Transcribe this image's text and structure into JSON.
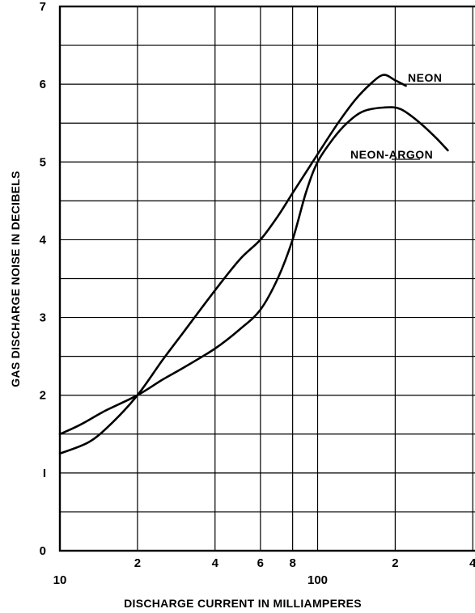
{
  "chart_data": {
    "type": "line",
    "xlabel": "DISCHARGE CURRENT IN MILLIAMPERES",
    "ylabel": "GAS DISCHARGE NOISE IN DECIBELS",
    "x_scale": "log",
    "xlim": [
      10,
      400
    ],
    "ylim": [
      0,
      7
    ],
    "grid": true,
    "x_ticks": [
      {
        "value": 10,
        "label": "10"
      },
      {
        "value": 20,
        "label": "2"
      },
      {
        "value": 40,
        "label": "4"
      },
      {
        "value": 60,
        "label": "6"
      },
      {
        "value": 80,
        "label": "8"
      },
      {
        "value": 100,
        "label": "100"
      },
      {
        "value": 200,
        "label": "2"
      },
      {
        "value": 400,
        "label": "4"
      }
    ],
    "y_ticks": [
      {
        "value": 0,
        "label": "0"
      },
      {
        "value": 1,
        "label": "I"
      },
      {
        "value": 2,
        "label": "2"
      },
      {
        "value": 3,
        "label": "3"
      },
      {
        "value": 4,
        "label": "4"
      },
      {
        "value": 5,
        "label": "5"
      },
      {
        "value": 6,
        "label": "6"
      },
      {
        "value": 7,
        "label": "7"
      }
    ],
    "series": [
      {
        "name": "NEON",
        "x": [
          10,
          13,
          16,
          20,
          25,
          30,
          40,
          50,
          60,
          70,
          80,
          100,
          120,
          140,
          160,
          180,
          200,
          220
        ],
        "y": [
          1.25,
          1.4,
          1.65,
          2.0,
          2.45,
          2.8,
          3.35,
          3.75,
          4.0,
          4.3,
          4.6,
          5.1,
          5.5,
          5.8,
          6.0,
          6.12,
          6.05,
          5.98
        ]
      },
      {
        "name": "NEON-ARGON",
        "x": [
          10,
          12,
          15,
          20,
          25,
          30,
          40,
          50,
          60,
          70,
          80,
          90,
          100,
          115,
          130,
          150,
          180,
          210,
          250,
          290,
          320
        ],
        "y": [
          1.5,
          1.62,
          1.8,
          2.0,
          2.2,
          2.35,
          2.6,
          2.85,
          3.1,
          3.5,
          4.0,
          4.6,
          5.0,
          5.3,
          5.5,
          5.65,
          5.7,
          5.68,
          5.5,
          5.3,
          5.15
        ]
      }
    ]
  }
}
